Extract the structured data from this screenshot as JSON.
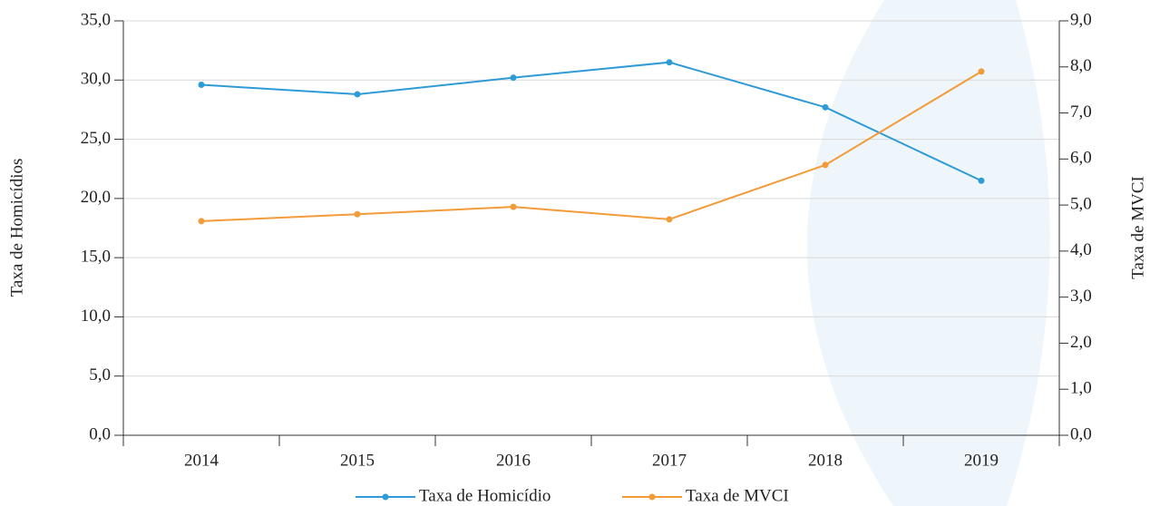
{
  "chart_data": {
    "type": "line",
    "categories": [
      "2014",
      "2015",
      "2016",
      "2017",
      "2018",
      "2019"
    ],
    "series": [
      {
        "name": "Taxa de Homicídio",
        "color": "#2e9bd6",
        "values": [
          29.6,
          28.8,
          30.2,
          31.5,
          27.7,
          21.5
        ]
      },
      {
        "name": "Taxa de MVCI",
        "color": "#f29b38",
        "axis": "y2",
        "values": [
          4.65,
          4.8,
          4.96,
          4.69,
          5.87,
          7.9
        ]
      }
    ],
    "ylabel": "Taxa de Homicídios",
    "y2label": "Taxa de MVCI",
    "ylim": [
      0,
      35
    ],
    "yticks": [
      {
        "value": 0,
        "label": "0,0"
      },
      {
        "value": 5,
        "label": "5,0"
      },
      {
        "value": 10,
        "label": "10,0"
      },
      {
        "value": 15,
        "label": "15,0"
      },
      {
        "value": 20,
        "label": "20,0"
      },
      {
        "value": 25,
        "label": "25,0"
      },
      {
        "value": 30,
        "label": "30,0"
      },
      {
        "value": 35,
        "label": "35,0"
      }
    ],
    "y2lim": [
      0,
      9
    ],
    "y2ticks": [
      {
        "value": 0,
        "label": "0,0"
      },
      {
        "value": 1,
        "label": "1,0"
      },
      {
        "value": 2,
        "label": "2,0"
      },
      {
        "value": 3,
        "label": "3,0"
      },
      {
        "value": 4,
        "label": "4,0"
      },
      {
        "value": 5,
        "label": "5,0"
      },
      {
        "value": 6,
        "label": "6,0"
      },
      {
        "value": 7,
        "label": "7,0"
      },
      {
        "value": 8,
        "label": "8,0"
      },
      {
        "value": 9,
        "label": "9,0"
      }
    ],
    "grid": true,
    "legend": "bottom"
  }
}
